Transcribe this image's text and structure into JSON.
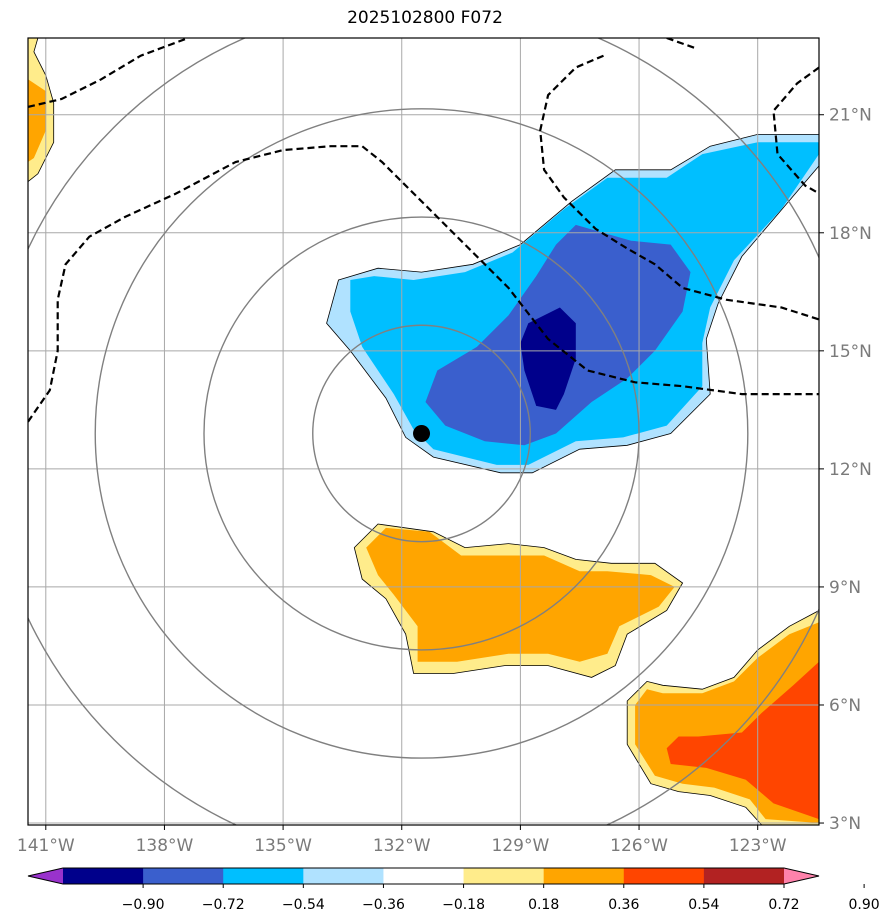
{
  "chart_data": {
    "type": "contour-map",
    "title": "2025102800 F072",
    "x_ticks": [
      {
        "lon": -141,
        "label": "141°W"
      },
      {
        "lon": -138,
        "label": "138°W"
      },
      {
        "lon": -135,
        "label": "135°W"
      },
      {
        "lon": -132,
        "label": "132°W"
      },
      {
        "lon": -129,
        "label": "129°W"
      },
      {
        "lon": -126,
        "label": "126°W"
      },
      {
        "lon": -123,
        "label": "123°W"
      }
    ],
    "y_ticks": [
      {
        "lat": 21,
        "label": "21°N"
      },
      {
        "lat": 18,
        "label": "18°N"
      },
      {
        "lat": 15,
        "label": "15°N"
      },
      {
        "lat": 12,
        "label": "12°N"
      },
      {
        "lat": 9,
        "label": "9°N"
      },
      {
        "lat": 6,
        "label": "6°N"
      },
      {
        "lat": 3,
        "label": "3°N"
      }
    ],
    "lon_range": [
      -141.45,
      -121.45
    ],
    "lat_range": [
      2.95,
      22.95
    ],
    "center_marker": {
      "lon": -131.5,
      "lat": 12.9
    },
    "range_rings_deg": [
      2.75,
      5.5,
      8.25,
      11
    ],
    "colorbar": {
      "levels": [
        "−0.90",
        "−0.72",
        "−0.54",
        "−0.36",
        "−0.18",
        "0.18",
        "0.36",
        "0.54",
        "0.72",
        "0.90"
      ],
      "colors": [
        "#9932cc",
        "#00008b",
        "#3a5fcd",
        "#00bfff",
        "#b0e2ff",
        "#ffffff",
        "#ffec8b",
        "#ffa500",
        "#ff4500",
        "#b22222",
        "#ff82ab"
      ]
    },
    "shaded_regions": [
      {
        "name": "blue-region-outer",
        "value_range": "-0.36 to -0.18",
        "color": "#b0e2ff",
        "points": [
          [
            -133.6,
            16.8
          ],
          [
            -132.6,
            17.1
          ],
          [
            -131.5,
            17.0
          ],
          [
            -130.2,
            17.2
          ],
          [
            -129.0,
            17.7
          ],
          [
            -127.7,
            18.8
          ],
          [
            -126.6,
            19.6
          ],
          [
            -125.2,
            19.6
          ],
          [
            -124.2,
            20.2
          ],
          [
            -123.0,
            20.5
          ],
          [
            -121.45,
            20.5
          ],
          [
            -121.45,
            19.7
          ],
          [
            -122.3,
            18.7
          ],
          [
            -123.4,
            17.4
          ],
          [
            -124.0,
            16.2
          ],
          [
            -124.3,
            15.3
          ],
          [
            -124.2,
            13.9
          ],
          [
            -125.2,
            12.9
          ],
          [
            -126.3,
            12.6
          ],
          [
            -127.5,
            12.5
          ],
          [
            -128.7,
            11.9
          ],
          [
            -129.5,
            11.9
          ],
          [
            -131.2,
            12.3
          ],
          [
            -131.9,
            12.8
          ],
          [
            -132.4,
            13.8
          ],
          [
            -133.3,
            15.0
          ],
          [
            -133.9,
            15.7
          ]
        ]
      },
      {
        "name": "blue-region-mid",
        "value_range": "-0.54 to -0.36",
        "color": "#00bfff",
        "points": [
          [
            -133.3,
            16.8
          ],
          [
            -132.7,
            16.9
          ],
          [
            -131.7,
            16.8
          ],
          [
            -130.4,
            17.0
          ],
          [
            -129.2,
            17.5
          ],
          [
            -127.9,
            18.6
          ],
          [
            -126.8,
            19.4
          ],
          [
            -125.3,
            19.4
          ],
          [
            -124.4,
            20.0
          ],
          [
            -123.0,
            20.3
          ],
          [
            -121.45,
            20.3
          ],
          [
            -121.45,
            20.0
          ],
          [
            -122.4,
            18.6
          ],
          [
            -123.6,
            17.3
          ],
          [
            -124.2,
            16.1
          ],
          [
            -124.4,
            15.2
          ],
          [
            -124.4,
            14.1
          ],
          [
            -125.3,
            13.1
          ],
          [
            -126.4,
            12.8
          ],
          [
            -127.6,
            12.7
          ],
          [
            -128.8,
            12.1
          ],
          [
            -129.6,
            12.1
          ],
          [
            -131.2,
            12.5
          ],
          [
            -131.7,
            13.0
          ],
          [
            -132.2,
            13.9
          ],
          [
            -133.0,
            15.1
          ],
          [
            -133.3,
            16.0
          ]
        ]
      },
      {
        "name": "blue-region-inner",
        "value_range": "-0.72 to -0.54",
        "color": "#3a5fcd",
        "points": [
          [
            -127.6,
            18.2
          ],
          [
            -126.2,
            17.8
          ],
          [
            -125.2,
            17.7
          ],
          [
            -124.7,
            17.0
          ],
          [
            -124.9,
            16.0
          ],
          [
            -125.6,
            15.0
          ],
          [
            -126.3,
            14.3
          ],
          [
            -127.2,
            13.7
          ],
          [
            -128.1,
            12.9
          ],
          [
            -128.9,
            12.6
          ],
          [
            -129.9,
            12.7
          ],
          [
            -130.9,
            13.1
          ],
          [
            -131.4,
            13.7
          ],
          [
            -131.1,
            14.5
          ],
          [
            -130.1,
            15.1
          ],
          [
            -129.3,
            15.9
          ],
          [
            -128.6,
            16.9
          ],
          [
            -128.1,
            17.7
          ]
        ]
      },
      {
        "name": "blue-region-core",
        "value_range": "-0.90 to -0.72",
        "color": "#00008b",
        "points": [
          [
            -128.0,
            16.1
          ],
          [
            -127.6,
            15.7
          ],
          [
            -127.6,
            14.8
          ],
          [
            -127.9,
            13.9
          ],
          [
            -128.1,
            13.5
          ],
          [
            -128.6,
            13.6
          ],
          [
            -128.9,
            14.5
          ],
          [
            -129.0,
            15.2
          ],
          [
            -128.8,
            15.7
          ]
        ]
      },
      {
        "name": "orange-region-outer",
        "value_range": "0.18 to 0.36",
        "color": "#ffec8b",
        "points": [
          [
            -133.2,
            10.0
          ],
          [
            -132.6,
            10.6
          ],
          [
            -131.2,
            10.4
          ],
          [
            -130.4,
            10.0
          ],
          [
            -129.3,
            10.1
          ],
          [
            -128.4,
            10.0
          ],
          [
            -127.6,
            9.7
          ],
          [
            -126.7,
            9.6
          ],
          [
            -125.6,
            9.6
          ],
          [
            -124.9,
            9.1
          ],
          [
            -125.3,
            8.4
          ],
          [
            -126.3,
            7.8
          ],
          [
            -126.6,
            7.0
          ],
          [
            -127.2,
            6.7
          ],
          [
            -128.3,
            7.0
          ],
          [
            -129.4,
            7.0
          ],
          [
            -130.7,
            6.8
          ],
          [
            -131.7,
            6.8
          ],
          [
            -131.9,
            7.8
          ],
          [
            -132.4,
            8.7
          ],
          [
            -133.0,
            9.2
          ]
        ]
      },
      {
        "name": "orange-region-inner",
        "value_range": "0.36 to 0.54",
        "color": "#ffa500",
        "points": [
          [
            -132.9,
            10.0
          ],
          [
            -132.4,
            10.5
          ],
          [
            -131.3,
            10.4
          ],
          [
            -130.5,
            9.8
          ],
          [
            -129.3,
            9.8
          ],
          [
            -128.4,
            9.8
          ],
          [
            -127.5,
            9.4
          ],
          [
            -126.8,
            9.4
          ],
          [
            -125.7,
            9.3
          ],
          [
            -125.1,
            9.0
          ],
          [
            -125.5,
            8.5
          ],
          [
            -126.5,
            8.0
          ],
          [
            -126.8,
            7.3
          ],
          [
            -127.5,
            7.1
          ],
          [
            -128.3,
            7.3
          ],
          [
            -129.3,
            7.3
          ],
          [
            -130.6,
            7.1
          ],
          [
            -131.6,
            7.1
          ],
          [
            -131.6,
            8.0
          ],
          [
            -132.2,
            8.8
          ],
          [
            -132.6,
            9.3
          ]
        ]
      },
      {
        "name": "southeast-region-outer",
        "value_range": "0.18 to 0.36",
        "color": "#ffec8b",
        "points": [
          [
            -121.45,
            8.4
          ],
          [
            -122.2,
            8.0
          ],
          [
            -123.0,
            7.4
          ],
          [
            -123.6,
            6.7
          ],
          [
            -124.4,
            6.4
          ],
          [
            -125.4,
            6.5
          ],
          [
            -125.8,
            6.6
          ],
          [
            -126.3,
            6.1
          ],
          [
            -126.3,
            5.0
          ],
          [
            -125.7,
            4.0
          ],
          [
            -125.0,
            3.8
          ],
          [
            -124.2,
            3.7
          ],
          [
            -123.3,
            3.4
          ],
          [
            -122.9,
            2.95
          ],
          [
            -121.45,
            2.95
          ]
        ]
      },
      {
        "name": "southeast-region-mid",
        "value_range": "0.36 to 0.54",
        "color": "#ffa500",
        "points": [
          [
            -121.45,
            8.1
          ],
          [
            -122.2,
            7.8
          ],
          [
            -123.0,
            7.2
          ],
          [
            -123.6,
            6.6
          ],
          [
            -124.4,
            6.3
          ],
          [
            -125.4,
            6.3
          ],
          [
            -125.8,
            6.4
          ],
          [
            -126.1,
            6.0
          ],
          [
            -126.1,
            5.0
          ],
          [
            -125.6,
            4.2
          ],
          [
            -124.9,
            4.0
          ],
          [
            -124.1,
            3.9
          ],
          [
            -123.2,
            3.6
          ],
          [
            -122.8,
            3.1
          ],
          [
            -121.45,
            3.0
          ]
        ]
      },
      {
        "name": "southeast-region-inner",
        "value_range": "0.54 to 0.72",
        "color": "#ff4500",
        "points": [
          [
            -121.45,
            7.1
          ],
          [
            -122.1,
            6.5
          ],
          [
            -122.9,
            5.8
          ],
          [
            -123.4,
            5.3
          ],
          [
            -124.5,
            5.2
          ],
          [
            -125.0,
            5.2
          ],
          [
            -125.3,
            4.9
          ],
          [
            -125.2,
            4.5
          ],
          [
            -124.3,
            4.4
          ],
          [
            -123.3,
            4.1
          ],
          [
            -122.6,
            3.5
          ],
          [
            -121.45,
            3.1
          ]
        ]
      },
      {
        "name": "northwest-region-outer",
        "value_range": "0.18 to 0.36",
        "color": "#ffec8b",
        "points": [
          [
            -141.45,
            22.95
          ],
          [
            -141.2,
            22.95
          ],
          [
            -141.3,
            22.6
          ],
          [
            -141.0,
            22.0
          ],
          [
            -140.8,
            21.3
          ],
          [
            -140.8,
            20.3
          ],
          [
            -141.2,
            19.5
          ],
          [
            -141.45,
            19.3
          ]
        ]
      },
      {
        "name": "northwest-region-inner",
        "value_range": "0.36 to 0.54",
        "color": "#ffa500",
        "points": [
          [
            -141.45,
            21.9
          ],
          [
            -141.0,
            21.6
          ],
          [
            -141.0,
            20.6
          ],
          [
            -141.3,
            19.9
          ],
          [
            -141.45,
            19.8
          ]
        ]
      }
    ],
    "dashed_contours": [
      {
        "name": "dashed-contour-west",
        "points": [
          [
            -141.45,
            13.2
          ],
          [
            -140.9,
            14.0
          ],
          [
            -140.7,
            15.0
          ],
          [
            -140.7,
            16.3
          ],
          [
            -140.5,
            17.2
          ],
          [
            -139.9,
            17.9
          ],
          [
            -139.0,
            18.4
          ],
          [
            -137.7,
            19.0
          ],
          [
            -136.2,
            19.8
          ],
          [
            -135.0,
            20.1
          ],
          [
            -133.8,
            20.2
          ],
          [
            -133.0,
            20.2
          ],
          [
            -132.5,
            19.8
          ],
          [
            -131.6,
            18.9
          ],
          [
            -130.4,
            17.7
          ],
          [
            -129.3,
            16.6
          ],
          [
            -128.3,
            15.3
          ],
          [
            -127.3,
            14.5
          ],
          [
            -126.1,
            14.2
          ],
          [
            -124.9,
            14.1
          ],
          [
            -123.4,
            13.9
          ],
          [
            -122.3,
            13.9
          ],
          [
            -121.45,
            13.9
          ]
        ]
      },
      {
        "name": "dashed-contour-east",
        "points": [
          [
            -126.9,
            22.5
          ],
          [
            -127.6,
            22.2
          ],
          [
            -128.3,
            21.5
          ],
          [
            -128.5,
            20.6
          ],
          [
            -128.4,
            19.6
          ],
          [
            -127.9,
            18.9
          ],
          [
            -127.1,
            18.1
          ],
          [
            -126.3,
            17.6
          ],
          [
            -125.6,
            17.2
          ],
          [
            -124.9,
            16.6
          ],
          [
            -123.8,
            16.3
          ],
          [
            -122.4,
            16.1
          ],
          [
            -121.45,
            15.8
          ]
        ]
      },
      {
        "name": "dashed-contour-north",
        "points": [
          [
            -141.45,
            21.2
          ],
          [
            -140.6,
            21.4
          ],
          [
            -139.6,
            21.9
          ],
          [
            -138.6,
            22.5
          ],
          [
            -137.4,
            22.95
          ]
        ]
      },
      {
        "name": "dashed-contour-northeast",
        "points": [
          [
            -121.45,
            22.2
          ],
          [
            -122.0,
            21.8
          ],
          [
            -122.6,
            21.1
          ],
          [
            -122.5,
            20.0
          ],
          [
            -121.8,
            19.2
          ],
          [
            -121.45,
            19.0
          ]
        ]
      },
      {
        "name": "dashed-contour-top",
        "points": [
          [
            -125.3,
            22.95
          ],
          [
            -124.6,
            22.7
          ]
        ]
      }
    ]
  }
}
